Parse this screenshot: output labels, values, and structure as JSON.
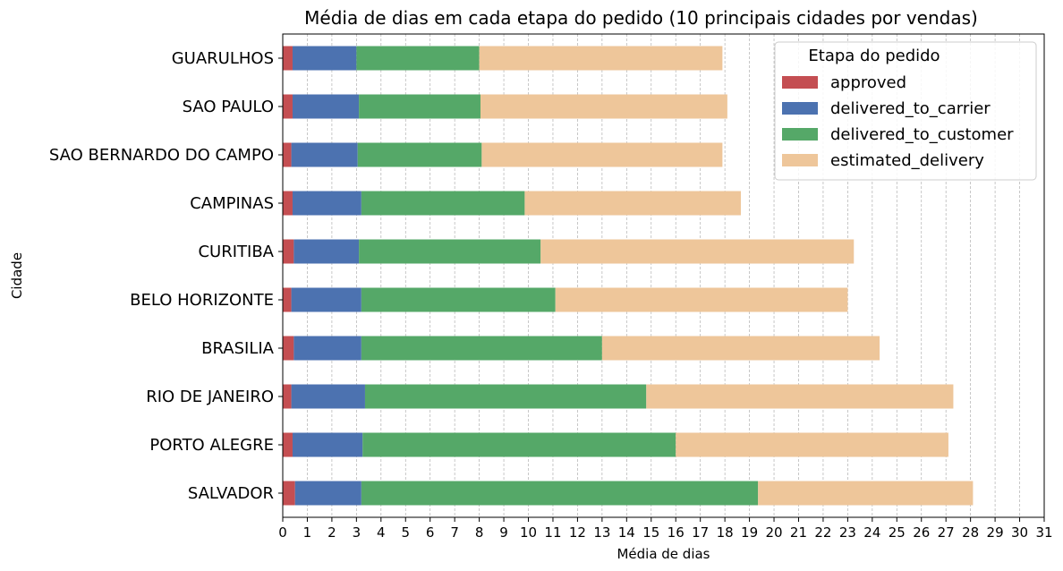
{
  "chart_data": {
    "type": "bar",
    "orientation": "horizontal",
    "stacked": true,
    "title": "Média de dias em cada etapa do pedido (10 principais cidades por vendas)",
    "xlabel": "Média de dias",
    "ylabel": "Cidade",
    "xlim": [
      0,
      31
    ],
    "xticks": [
      0,
      1,
      2,
      3,
      4,
      5,
      6,
      7,
      8,
      9,
      10,
      11,
      12,
      13,
      14,
      15,
      16,
      17,
      18,
      19,
      20,
      21,
      22,
      23,
      24,
      25,
      26,
      27,
      28,
      29,
      30,
      31
    ],
    "grid": "vertical dashed",
    "legend": {
      "title": "Etapa do pedido",
      "placement": "top-right"
    },
    "categories": [
      "GUARULHOS",
      "SAO PAULO",
      "SAO BERNARDO DO CAMPO",
      "CAMPINAS",
      "CURITIBA",
      "BELO HORIZONTE",
      "BRASILIA",
      "RIO DE JANEIRO",
      "PORTO ALEGRE",
      "SALVADOR"
    ],
    "series": [
      {
        "name": "approved",
        "color": "#c44e52",
        "values": [
          0.4,
          0.4,
          0.35,
          0.4,
          0.45,
          0.35,
          0.45,
          0.35,
          0.4,
          0.5
        ]
      },
      {
        "name": "delivered_to_carrier",
        "color": "#4c72b0",
        "values": [
          2.6,
          2.7,
          2.7,
          2.8,
          2.65,
          2.85,
          2.75,
          3.0,
          2.85,
          2.7
        ]
      },
      {
        "name": "delivered_to_customer",
        "color": "#55a868",
        "values": [
          5.0,
          4.95,
          5.05,
          6.65,
          7.4,
          7.9,
          9.8,
          11.45,
          12.75,
          16.15
        ]
      },
      {
        "name": "estimated_delivery",
        "color": "#eec69a",
        "values": [
          9.9,
          10.05,
          9.8,
          8.8,
          12.75,
          11.9,
          11.3,
          12.5,
          11.1,
          8.75
        ]
      }
    ]
  }
}
